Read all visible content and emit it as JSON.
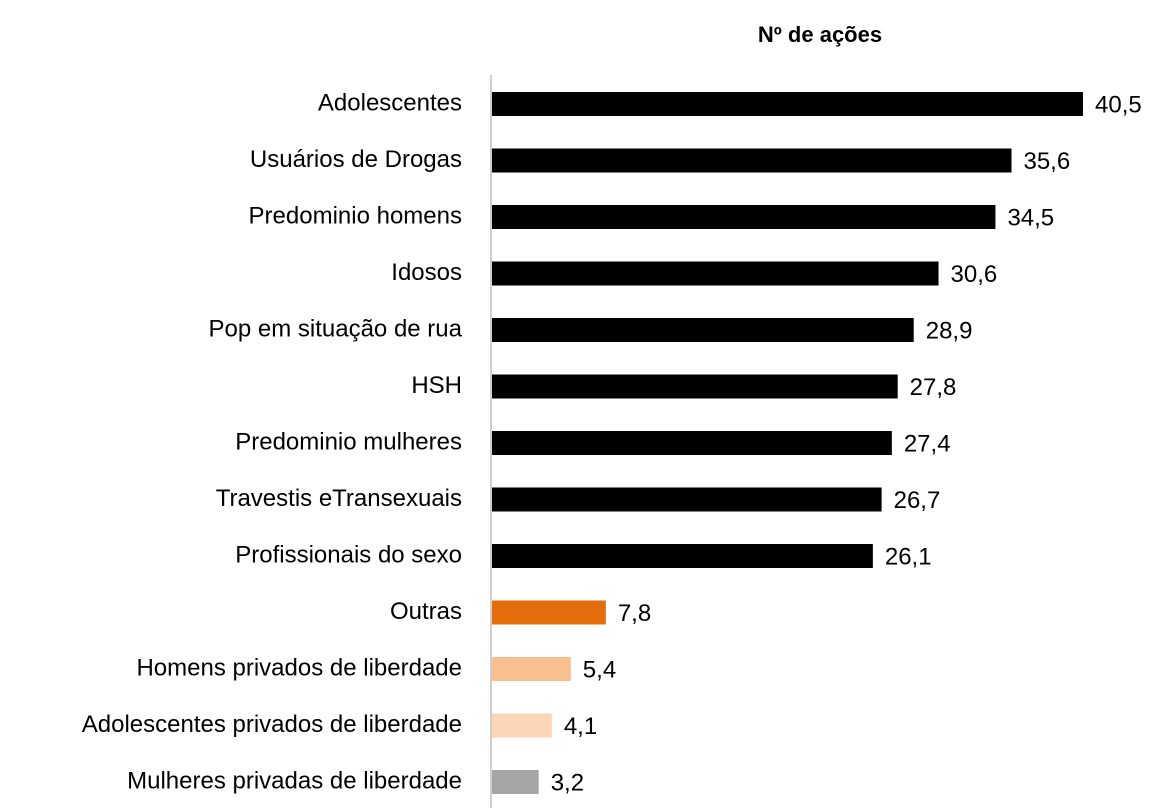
{
  "chart_data": {
    "type": "bar",
    "orientation": "horizontal",
    "title": "Nº de ações",
    "categories": [
      "Adolescentes",
      "Usuários de Drogas",
      "Predominio homens",
      "Idosos",
      "Pop em situação de rua",
      "HSH",
      "Predominio mulheres",
      "Travestis eTransexuais",
      "Profissionais do sexo",
      "Outras",
      "Homens privados de liberdade",
      "Adolescentes privados de liberdade",
      "Mulheres privadas de liberdade"
    ],
    "values": [
      40.5,
      35.6,
      34.5,
      30.6,
      28.9,
      27.8,
      27.4,
      26.7,
      26.1,
      7.8,
      5.4,
      4.1,
      3.2
    ],
    "value_labels": [
      "40,5",
      "35,6",
      "34,5",
      "30,6",
      "28,9",
      "27,8",
      "27,4",
      "26,7",
      "26,1",
      "7,8",
      "5,4",
      "4,1",
      "3,2"
    ],
    "colors": [
      "#000000",
      "#000000",
      "#000000",
      "#000000",
      "#000000",
      "#000000",
      "#000000",
      "#000000",
      "#000000",
      "#e46c0a",
      "#f9bf8f",
      "#fbd5b5",
      "#a6a6a6"
    ]
  }
}
